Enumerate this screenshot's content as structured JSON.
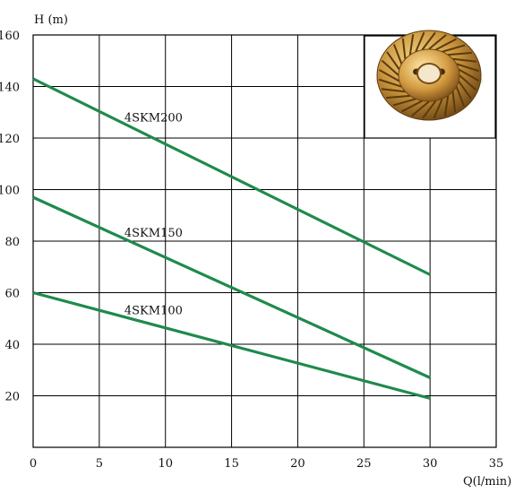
{
  "chart_data": {
    "type": "line",
    "xlabel": "Q(l/min)",
    "ylabel": "H (m)",
    "xlim": [
      0,
      35
    ],
    "ylim": [
      0,
      160
    ],
    "xticks": [
      0,
      5,
      10,
      15,
      20,
      25,
      30,
      35
    ],
    "yticks": [
      20,
      40,
      60,
      80,
      100,
      120,
      140,
      160
    ],
    "grid": true,
    "line_color": "#1f8a4c",
    "series": [
      {
        "name": "4SKM200",
        "x": [
          0,
          30
        ],
        "y": [
          143,
          67
        ]
      },
      {
        "name": "4SKM150",
        "x": [
          0,
          30
        ],
        "y": [
          97,
          27
        ]
      },
      {
        "name": "4SKM100",
        "x": [
          0,
          30
        ],
        "y": [
          60,
          19
        ]
      }
    ]
  },
  "inset_image": {
    "subject": "impeller-photo",
    "colors": {
      "base": "#b9812c",
      "highlight": "#f1d27a",
      "dark": "#5a3a0e"
    }
  }
}
